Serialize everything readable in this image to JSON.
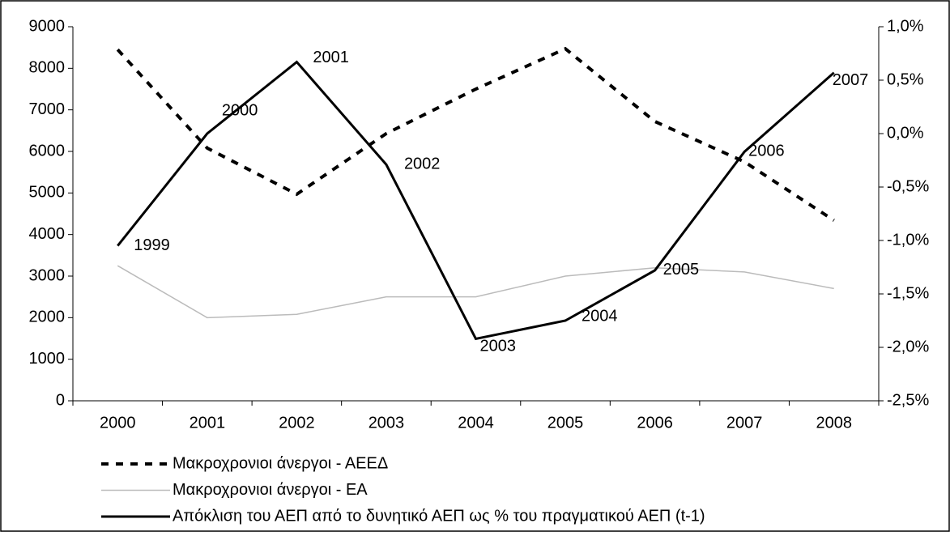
{
  "chart_data": {
    "type": "line",
    "categories": [
      "2000",
      "2001",
      "2002",
      "2003",
      "2004",
      "2005",
      "2006",
      "2007",
      "2008"
    ],
    "ylim": [
      0,
      9000
    ],
    "yticks": [
      0,
      1000,
      2000,
      3000,
      4000,
      5000,
      6000,
      7000,
      8000,
      9000
    ],
    "y2lim": [
      -2.5,
      1.0
    ],
    "y2ticks": [
      {
        "value": -2.5,
        "label": "-2,5%"
      },
      {
        "value": -2.0,
        "label": "-2,0%"
      },
      {
        "value": -1.5,
        "label": "-1,5%"
      },
      {
        "value": -1.0,
        "label": "-1,0%"
      },
      {
        "value": -0.5,
        "label": "-0,5%"
      },
      {
        "value": 0.0,
        "label": "0,0%"
      },
      {
        "value": 0.5,
        "label": "0,5%"
      },
      {
        "value": 1.0,
        "label": "1,0%"
      }
    ],
    "legend": "bottom",
    "series": [
      {
        "name": "Μακροχρονιοι άνεργοι - ΑΕΕΔ",
        "color": "#000000",
        "style": "dashed",
        "values": [
          8450,
          6080,
          4970,
          6430,
          7500,
          8470,
          6720,
          5750,
          4340
        ]
      },
      {
        "name": "Μακροχρονιοι άνεργοι - ΕΑ",
        "color": "#bbbbbb",
        "style": "thin",
        "values": [
          3250,
          2000,
          2080,
          2500,
          2500,
          3000,
          3200,
          3100,
          2700
        ]
      },
      {
        "name": "Απόκλιση του ΑΕΠ από το δυνητικό ΑΕΠ ως % του πραγματικού ΑΕΠ (t-1)",
        "color": "#000000",
        "style": "thick",
        "axis": "y2",
        "values": [
          -1.05,
          0.0,
          0.67,
          -0.29,
          -1.92,
          -1.75,
          -1.28,
          -0.17,
          0.57
        ],
        "point_labels": [
          "1999",
          "2000",
          "2001",
          "2002",
          "2003",
          "2004",
          "2005",
          "2006",
          "2007"
        ]
      }
    ]
  }
}
